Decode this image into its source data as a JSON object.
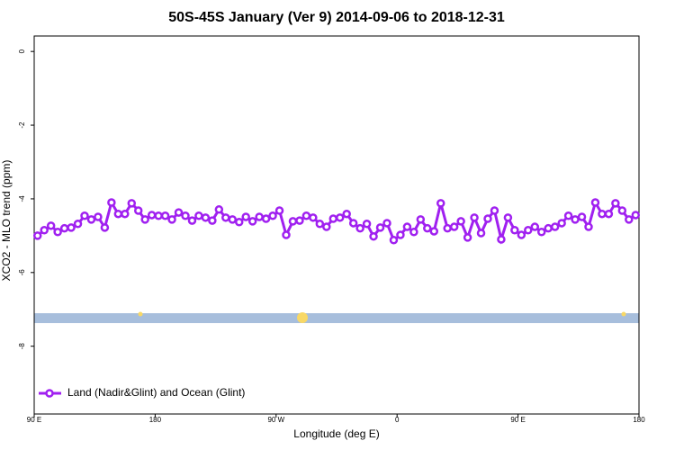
{
  "chart_data": {
    "type": "line",
    "title": "50S-45S January (Ver 9)   2014-09-06 to 2018-12-31",
    "x_label": "Longitude (deg E)",
    "y_label": "XCO2 - MLO trend (ppm)",
    "x": [
      92.5,
      97.5,
      102.5,
      107.5,
      112.5,
      117.5,
      122.5,
      127.5,
      132.5,
      137.5,
      142.5,
      147.5,
      152.5,
      157.5,
      162.5,
      167.5,
      172.5,
      177.5,
      182.5,
      187.5,
      192.5,
      197.5,
      202.5,
      207.5,
      212.5,
      217.5,
      222.5,
      227.5,
      232.5,
      237.5,
      242.5,
      247.5,
      252.5,
      257.5,
      262.5,
      267.5,
      272.5,
      277.5,
      282.5,
      287.5,
      292.5,
      297.5,
      302.5,
      307.5,
      312.5,
      317.5,
      322.5,
      327.5,
      332.5,
      337.5,
      342.5,
      347.5,
      352.5,
      357.5,
      362.5,
      367.5,
      372.5,
      377.5,
      382.5,
      387.5,
      392.5,
      397.5,
      402.5,
      407.5,
      412.5,
      417.5,
      422.5,
      427.5,
      432.5,
      437.5,
      442.5,
      447.5,
      452.5,
      457.5,
      462.5,
      467.5,
      472.5,
      477.5,
      482.5,
      487.5,
      492.5,
      497.5,
      502.5,
      507.5,
      512.5,
      517.5,
      522.5,
      527.5,
      532.5,
      537.5
    ],
    "series": [
      {
        "name": "Land (Nadir&Glint) and Ocean (Glint)",
        "color": "#a020f0",
        "values": [
          -5.0,
          -4.85,
          -4.73,
          -4.9,
          -4.8,
          -4.78,
          -4.68,
          -4.46,
          -4.56,
          -4.49,
          -4.78,
          -4.1,
          -4.41,
          -4.41,
          -4.12,
          -4.32,
          -4.56,
          -4.44,
          -4.46,
          -4.46,
          -4.56,
          -4.37,
          -4.46,
          -4.59,
          -4.46,
          -4.51,
          -4.59,
          -4.29,
          -4.51,
          -4.56,
          -4.63,
          -4.49,
          -4.61,
          -4.49,
          -4.54,
          -4.46,
          -4.32,
          -4.98,
          -4.61,
          -4.59,
          -4.46,
          -4.51,
          -4.68,
          -4.76,
          -4.54,
          -4.51,
          -4.41,
          -4.66,
          -4.8,
          -4.68,
          -5.02,
          -4.78,
          -4.66,
          -5.12,
          -4.98,
          -4.76,
          -4.9,
          -4.56,
          -4.8,
          -4.88,
          -4.12,
          -4.8,
          -4.76,
          -4.61,
          -5.05,
          -4.51,
          -4.93,
          -4.54,
          -4.32,
          -5.1,
          -4.51,
          -4.85,
          -4.98,
          -4.85,
          -4.76,
          -4.9,
          -4.8,
          -4.76,
          -4.66,
          -4.46,
          -4.56,
          -4.49,
          -4.76,
          -4.1,
          -4.41,
          -4.41,
          -4.12,
          -4.32,
          -4.56,
          -4.44
        ]
      }
    ],
    "xlim": [
      90,
      540
    ],
    "xticks": [
      {
        "value": 90,
        "label": "90 E"
      },
      180,
      {
        "value": 270,
        "label": "90 W"
      },
      {
        "value": 360,
        "label": "0"
      },
      {
        "value": 450,
        "label": "90 E"
      },
      {
        "value": 540,
        "label": "180"
      }
    ],
    "ylim": [
      -9.84,
      0.42
    ],
    "yticks": [
      0,
      -2,
      -4,
      -6,
      -8
    ],
    "legend": "bottom-left"
  }
}
